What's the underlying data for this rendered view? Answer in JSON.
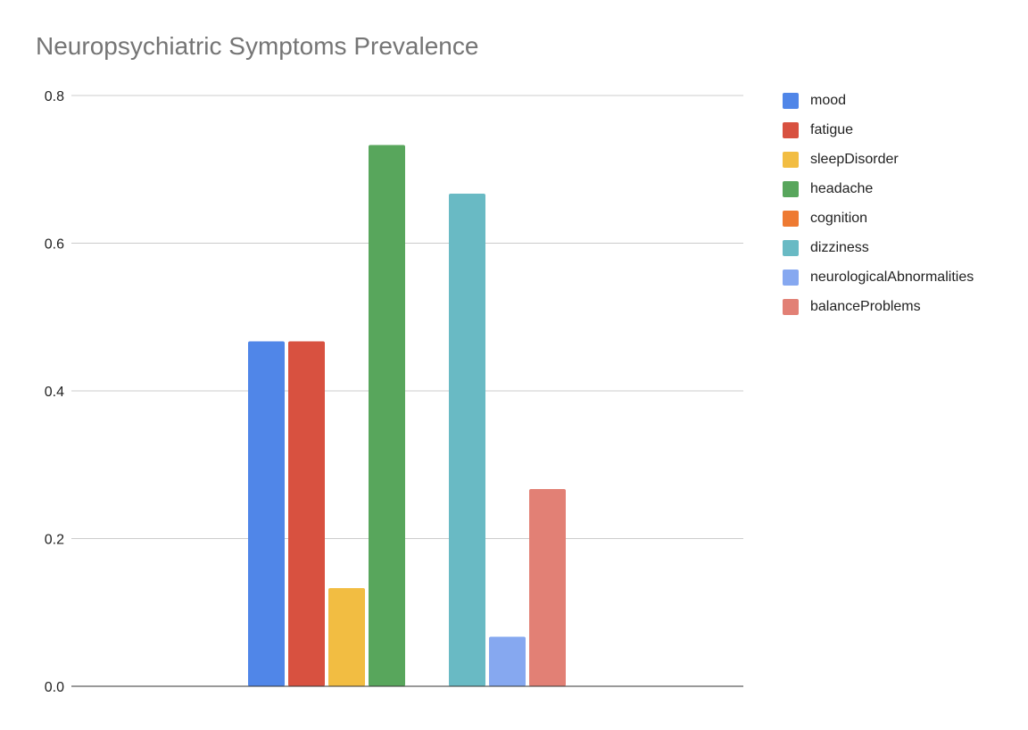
{
  "chart_data": {
    "type": "bar",
    "title": "Neuropsychiatric Symptoms Prevalence",
    "xlabel": "",
    "ylabel": "",
    "ylim": [
      0,
      0.8
    ],
    "yticks": [
      "0.0",
      "0.2",
      "0.4",
      "0.6",
      "0.8"
    ],
    "grid": true,
    "legend_position": "right",
    "series": [
      {
        "name": "mood",
        "value": 0.467,
        "color": "#5086E8"
      },
      {
        "name": "fatigue",
        "value": 0.467,
        "color": "#D85140"
      },
      {
        "name": "sleepDisorder",
        "value": 0.133,
        "color": "#F2BD42"
      },
      {
        "name": "headache",
        "value": 0.733,
        "color": "#58A65C"
      },
      {
        "name": "cognition",
        "value": 0.0,
        "color": "#EE7A32"
      },
      {
        "name": "dizziness",
        "value": 0.667,
        "color": "#69BAC4"
      },
      {
        "name": "neurologicalAbnormalities",
        "value": 0.067,
        "color": "#86A8F0"
      },
      {
        "name": "balanceProblems",
        "value": 0.267,
        "color": "#E28075"
      }
    ]
  }
}
